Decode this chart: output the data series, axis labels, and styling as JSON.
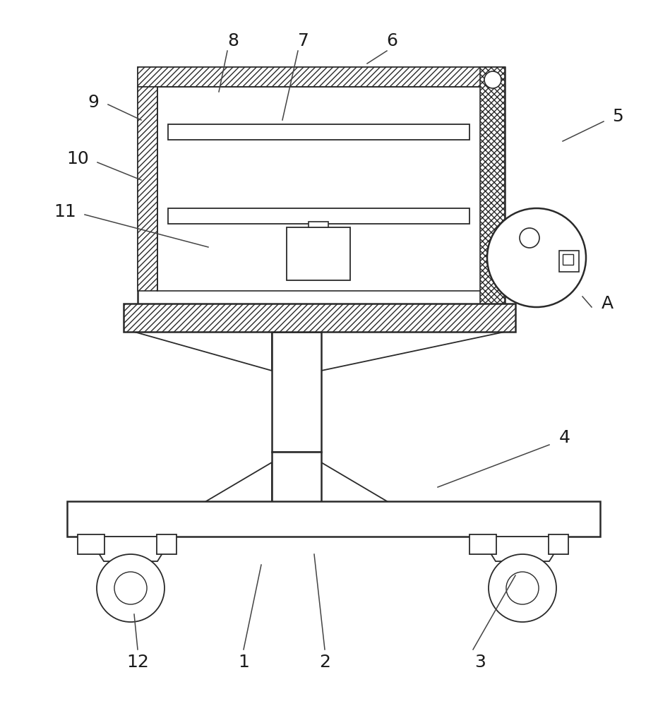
{
  "background_color": "#ffffff",
  "line_color": "#2a2a2a",
  "figsize": [
    9.49,
    10.0
  ],
  "dpi": 100
}
